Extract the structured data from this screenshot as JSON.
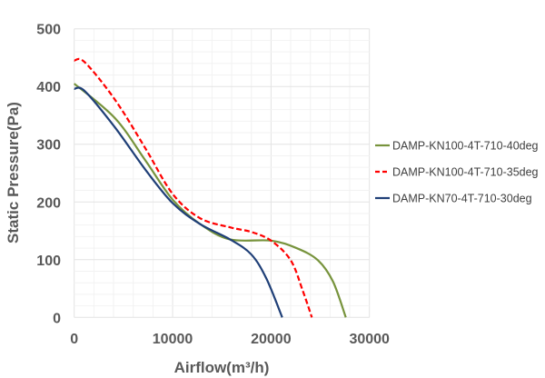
{
  "chart_data": {
    "type": "line",
    "title": "",
    "xlabel": "Airflow(m³/h)",
    "ylabel": "Static Pressure(Pa)",
    "xlim": [
      0,
      30000
    ],
    "ylim": [
      0,
      500
    ],
    "xticks": [
      "0",
      "10000",
      "20000",
      "30000"
    ],
    "yticks": [
      "0",
      "100",
      "200",
      "300",
      "400",
      "500"
    ],
    "grid": true,
    "legend_position": "right",
    "series": [
      {
        "name": "DAMP-KN100-4T-710-40deg",
        "color": "#77933C",
        "dash": false,
        "x": [
          0,
          4150,
          7230,
          10000,
          12770,
          15850,
          20000,
          22600,
          24770,
          26300,
          27600
        ],
        "y": [
          405,
          345,
          272,
          204,
          162,
          135,
          133,
          120,
          99,
          62,
          0
        ]
      },
      {
        "name": "DAMP-KN100-4T-710-35deg",
        "color": "#FF0000",
        "dash": true,
        "x": [
          0,
          1080,
          4150,
          7230,
          10000,
          12770,
          15850,
          18000,
          20000,
          22000,
          23230,
          24150
        ],
        "y": [
          445,
          442,
          377,
          293,
          214,
          172,
          156,
          148,
          133,
          99,
          46,
          0
        ]
      },
      {
        "name": "DAMP-KN70-4T-710-30deg",
        "color": "#1F3F77",
        "dash": false,
        "x": [
          0,
          1080,
          4150,
          7230,
          10000,
          12770,
          15850,
          18000,
          19540,
          21140
        ],
        "y": [
          396,
          392,
          329,
          256,
          198,
          162,
          135,
          109,
          67,
          0
        ]
      }
    ]
  }
}
